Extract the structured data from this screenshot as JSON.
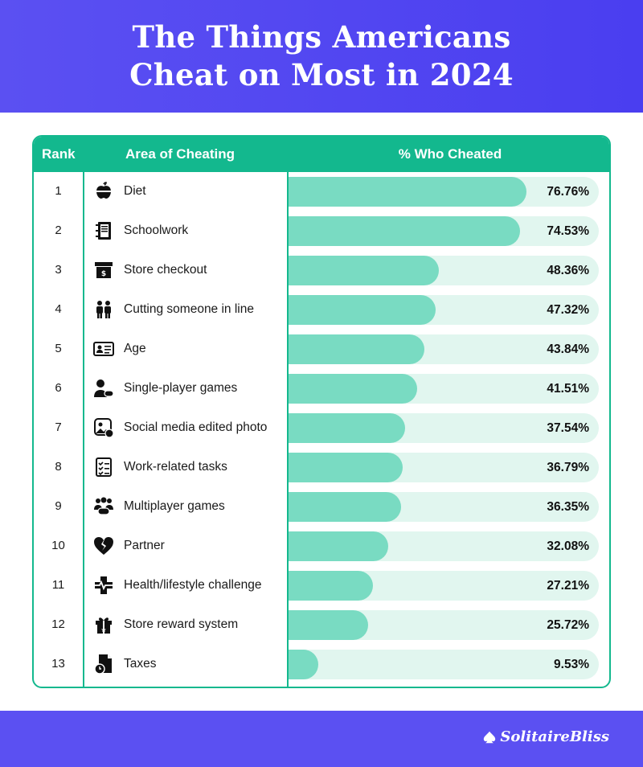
{
  "title": "The Things Americans Cheat on Most in 2024",
  "title_lines": [
    "The Things Americans",
    "Cheat on Most in 2024"
  ],
  "table": {
    "headers": {
      "rank": "Rank",
      "area": "Area of Cheating",
      "pct": "% Who Cheated"
    },
    "max_percent": 100
  },
  "chart_data": {
    "type": "bar",
    "orientation": "horizontal",
    "categories": [
      "Diet",
      "Schoolwork",
      "Store checkout",
      "Cutting someone in line",
      "Age",
      "Single-player games",
      "Social media edited photo",
      "Work-related tasks",
      "Multiplayer games",
      "Partner",
      "Health/lifestyle challenge",
      "Store reward system",
      "Taxes"
    ],
    "values": [
      76.76,
      74.53,
      48.36,
      47.32,
      43.84,
      41.51,
      37.54,
      36.79,
      36.35,
      32.08,
      27.21,
      25.72,
      9.53
    ],
    "value_labels": [
      "76.76%",
      "74.53%",
      "48.36%",
      "47.32%",
      "43.84%",
      "41.51%",
      "37.54%",
      "36.79%",
      "36.35%",
      "32.08%",
      "27.21%",
      "25.72%",
      "9.53%"
    ],
    "ranks": [
      "1",
      "2",
      "3",
      "4",
      "5",
      "6",
      "7",
      "8",
      "9",
      "10",
      "11",
      "12",
      "13"
    ],
    "icons": [
      "apple-icon",
      "notebook-icon",
      "cash-register-icon",
      "people-icon",
      "id-card-icon",
      "gamer-icon",
      "photo-icon",
      "checklist-icon",
      "group-icon",
      "broken-heart-icon",
      "health-icon",
      "gift-icon",
      "tax-document-icon"
    ],
    "title": "The Things Americans Cheat on Most in 2024",
    "xlim": [
      0,
      100
    ]
  },
  "colors": {
    "header_bg": "#5b50f2",
    "accent": "#13b88e",
    "bar_fill": "#79dbc2",
    "bar_track": "#e1f6ef"
  },
  "brand": "SolitaireBliss"
}
